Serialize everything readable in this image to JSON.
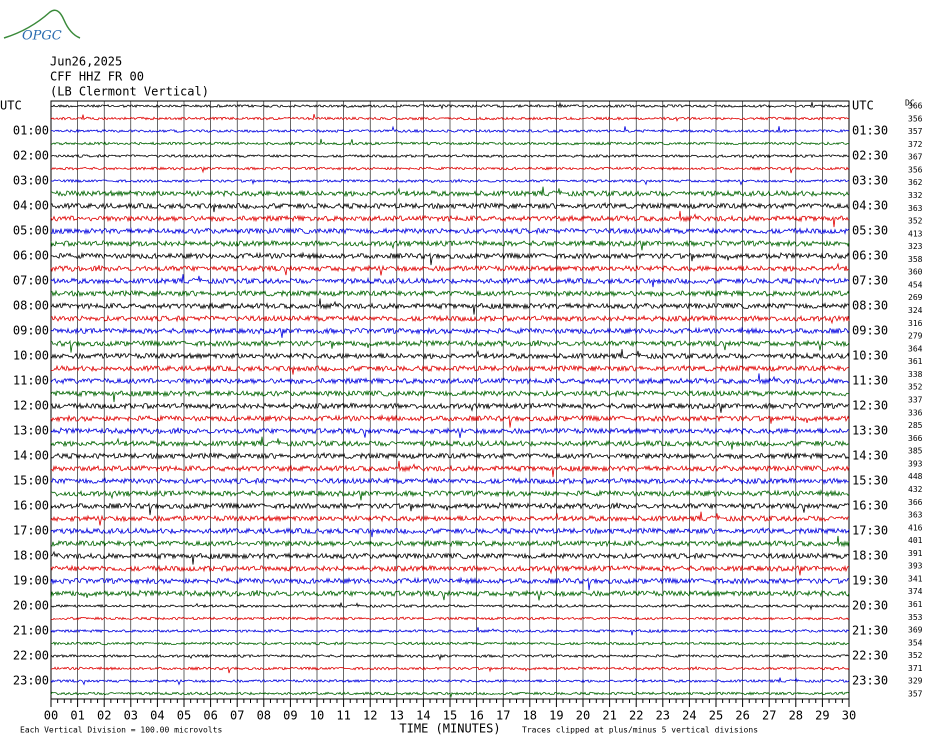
{
  "header": {
    "logo": "OPGC",
    "date": "Jun26,2025",
    "station": "CFF HHZ FR 00",
    "location": "(LB Clermont Vertical)"
  },
  "left_labels": [
    "UTC",
    "01:00",
    "02:00",
    "03:00",
    "04:00",
    "05:00",
    "06:00",
    "07:00",
    "08:00",
    "09:00",
    "10:00",
    "11:00",
    "12:00",
    "13:00",
    "14:00",
    "15:00",
    "16:00",
    "17:00",
    "18:00",
    "19:00",
    "20:00",
    "21:00",
    "22:00",
    "23:00"
  ],
  "right_labels": [
    "UTC",
    "01:30",
    "02:30",
    "03:30",
    "04:30",
    "05:30",
    "06:30",
    "07:30",
    "08:30",
    "09:30",
    "10:30",
    "11:30",
    "12:30",
    "13:30",
    "14:30",
    "15:30",
    "16:30",
    "17:30",
    "18:30",
    "19:30",
    "20:30",
    "21:30",
    "22:30",
    "23:30"
  ],
  "dc_heading": "DC",
  "dc_values": [
    366,
    356,
    357,
    372,
    367,
    356,
    362,
    332,
    363,
    352,
    413,
    323,
    358,
    360,
    454,
    269,
    324,
    316,
    279,
    364,
    361,
    338,
    352,
    337,
    336,
    285,
    366,
    385,
    393,
    448,
    432,
    366,
    363,
    416,
    401,
    391,
    393,
    341,
    374,
    361,
    353,
    369,
    354,
    352,
    371,
    329,
    357
  ],
  "trace_colors": [
    "#000000",
    "#e00000",
    "#0000e0",
    "#006400"
  ],
  "x_ticks": [
    "00",
    "01",
    "02",
    "03",
    "04",
    "05",
    "06",
    "07",
    "08",
    "09",
    "10",
    "11",
    "12",
    "13",
    "14",
    "15",
    "16",
    "17",
    "18",
    "19",
    "20",
    "21",
    "22",
    "23",
    "24",
    "25",
    "26",
    "27",
    "28",
    "29",
    "30"
  ],
  "x_title": "TIME (MINUTES)",
  "footer": {
    "scale": "Each Vertical Division =  100.00 microvolts",
    "clip": "Traces clipped at plus/minus 5 vertical divisions"
  }
}
